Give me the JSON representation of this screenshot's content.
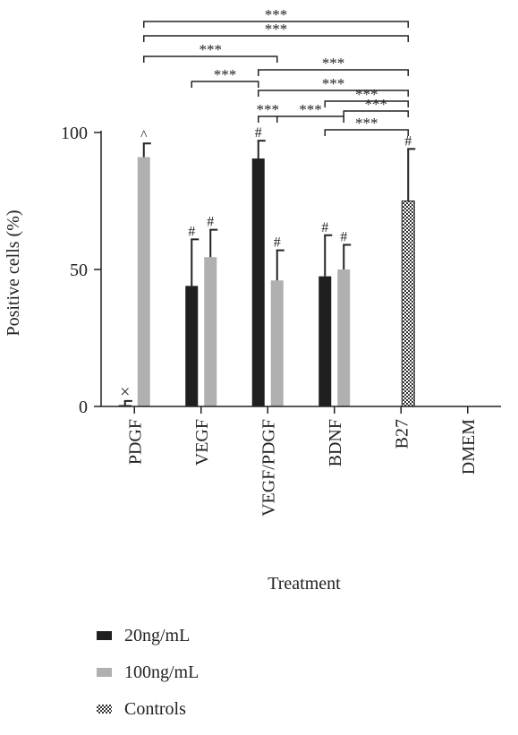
{
  "chart_data": {
    "type": "bar",
    "categories": [
      "PDGF",
      "VEGF",
      "VEGF/PDGF",
      "BDNF",
      "B27",
      "DMEM"
    ],
    "xlabel": "Treatment",
    "ylabel": "Positive cells (%)",
    "ylim": [
      0,
      100
    ],
    "yticks": [
      0,
      50,
      100
    ],
    "series": [
      {
        "name": "20ng/mL",
        "color": "#1f1f1f",
        "values": [
          0.5,
          44,
          90.5,
          47.5,
          null,
          null
        ],
        "errors": [
          1.5,
          17,
          6.5,
          15,
          null,
          null
        ],
        "markers": [
          "×",
          "#",
          "#",
          "#",
          "",
          ""
        ]
      },
      {
        "name": "100ng/mL",
        "color": "#b0b0b1",
        "values": [
          91,
          54.5,
          46,
          50,
          null,
          null
        ],
        "errors": [
          5,
          10,
          11,
          9,
          null,
          null
        ],
        "markers": [
          "^",
          "#",
          "#",
          "#",
          "",
          ""
        ]
      },
      {
        "name": "Controls",
        "color": "#444444",
        "pattern": "checkered",
        "values": [
          null,
          null,
          null,
          null,
          75,
          null
        ],
        "errors": [
          null,
          null,
          null,
          null,
          19,
          null
        ],
        "markers": [
          "",
          "",
          "",
          "",
          "#",
          ""
        ]
      }
    ],
    "annotations": [
      "***",
      "***",
      "***",
      "***",
      "***",
      "***",
      "***",
      "***",
      "***",
      "***",
      "***"
    ]
  },
  "legend": {
    "items": [
      {
        "label": "20ng/mL",
        "color": "#1f1f1f"
      },
      {
        "label": "100ng/mL",
        "color": "#b0b0b1"
      },
      {
        "label": "Controls",
        "color": "#444444"
      }
    ]
  }
}
